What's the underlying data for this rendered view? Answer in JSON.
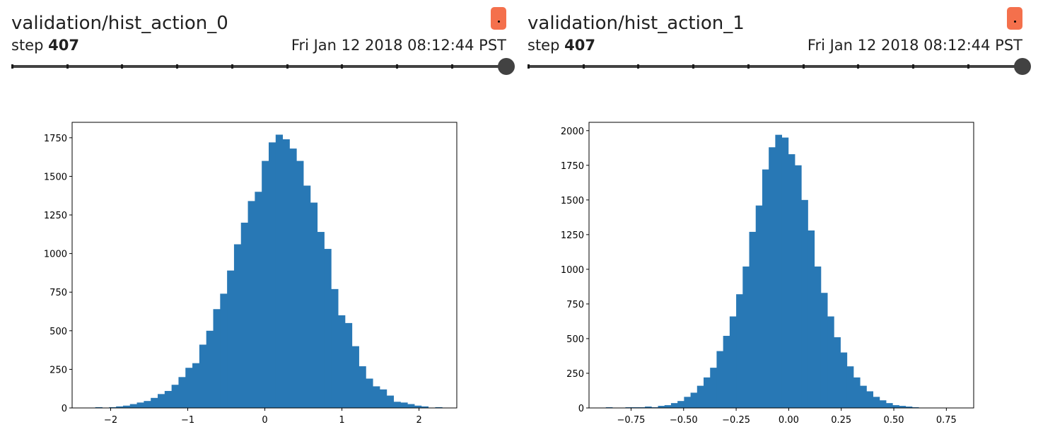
{
  "cards": [
    {
      "title": "validation/hist_action_0",
      "step_label": "step",
      "step_value": "407",
      "timestamp": "Fri Jan 12 2018 08:12:44 PST",
      "accent_color": "#f4704c",
      "chart_data": {
        "type": "bar",
        "title": "",
        "xlabel": "",
        "ylabel": "",
        "bar_color": "#2878b5",
        "xlim": [
          -2.5,
          2.49
        ],
        "ylim": [
          0,
          1850
        ],
        "xticks": [
          -2,
          -1,
          0,
          1,
          2
        ],
        "xtick_labels": [
          "−2",
          "−1",
          "0",
          "1",
          "2"
        ],
        "yticks": [
          0,
          250,
          500,
          750,
          1000,
          1250,
          1500,
          1750
        ],
        "yticks_labels": [
          "0",
          "250",
          "500",
          "750",
          "1000",
          "1250",
          "1500",
          "1750"
        ],
        "bin_start": -2.2,
        "bin_width": 0.09,
        "values": [
          5,
          0,
          5,
          10,
          15,
          25,
          35,
          45,
          65,
          90,
          110,
          150,
          200,
          260,
          290,
          410,
          500,
          640,
          740,
          890,
          1060,
          1200,
          1340,
          1400,
          1600,
          1720,
          1770,
          1740,
          1680,
          1600,
          1440,
          1330,
          1140,
          1030,
          770,
          600,
          550,
          400,
          270,
          190,
          140,
          120,
          80,
          40,
          35,
          25,
          15,
          10,
          0,
          5
        ]
      }
    },
    {
      "title": "validation/hist_action_1",
      "step_label": "step",
      "step_value": "407",
      "timestamp": "Fri Jan 12 2018 08:12:44 PST",
      "accent_color": "#f4704c",
      "chart_data": {
        "type": "bar",
        "title": "",
        "xlabel": "",
        "ylabel": "",
        "bar_color": "#2878b5",
        "xlim": [
          -0.95,
          0.88
        ],
        "ylim": [
          0,
          2060
        ],
        "xticks": [
          -0.75,
          -0.5,
          -0.25,
          0,
          0.25,
          0.5,
          0.75
        ],
        "xtick_labels": [
          "−0.75",
          "−0.50",
          "−0.25",
          "0.00",
          "0.25",
          "0.50",
          "0.75"
        ],
        "yticks": [
          0,
          250,
          500,
          750,
          1000,
          1250,
          1500,
          1750,
          2000
        ],
        "yticks_labels": [
          "0",
          "250",
          "500",
          "750",
          "1000",
          "1250",
          "1500",
          "1750",
          "2000"
        ],
        "bin_start": -0.87,
        "bin_width": 0.031,
        "values": [
          5,
          0,
          0,
          5,
          5,
          5,
          10,
          5,
          15,
          20,
          35,
          50,
          80,
          110,
          160,
          220,
          290,
          410,
          520,
          660,
          820,
          1020,
          1270,
          1460,
          1720,
          1880,
          1970,
          1950,
          1830,
          1750,
          1500,
          1280,
          1020,
          830,
          660,
          510,
          400,
          300,
          220,
          160,
          120,
          80,
          55,
          35,
          20,
          15,
          10,
          5
        ]
      }
    }
  ]
}
